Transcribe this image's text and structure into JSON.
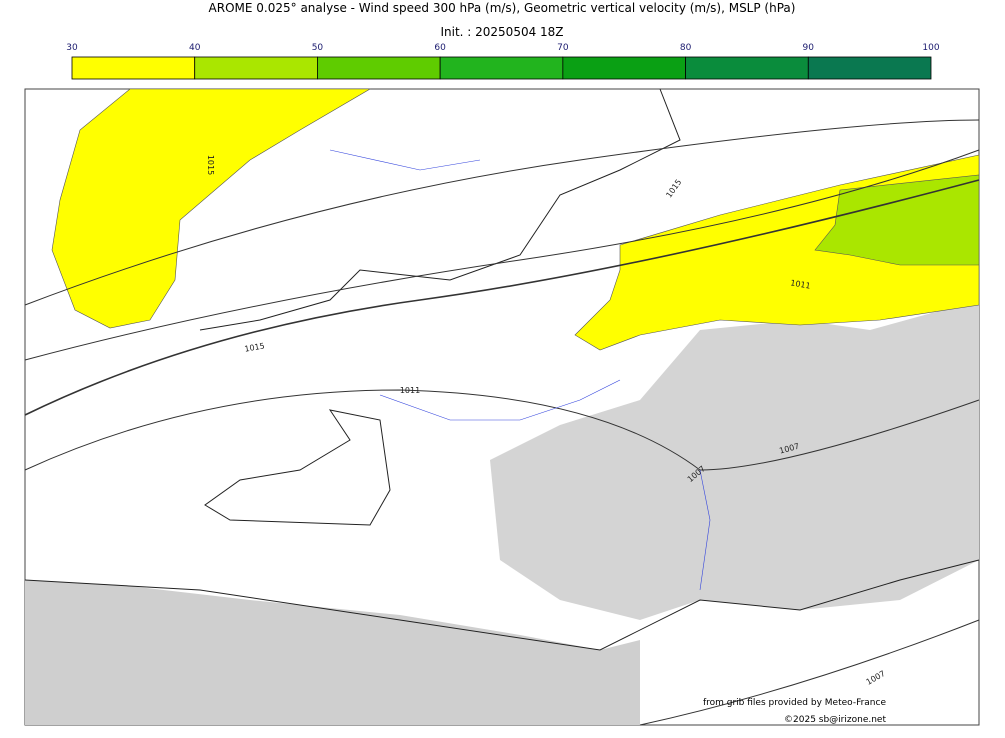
{
  "header": {
    "title": "AROME 0.025° analyse - Wind speed 300 hPa (m/s), Geometric vertical velocity (m/s), MSLP (hPa)",
    "init": "Init. : 20250504 18Z"
  },
  "colorbar": {
    "ticks": [
      30,
      40,
      50,
      60,
      70,
      80,
      90,
      100
    ],
    "colors": [
      "#ffff00",
      "#aae600",
      "#5fcc00",
      "#22b41e",
      "#0aa014",
      "#0a8c3c",
      "#0a7850"
    ]
  },
  "contour_labels": [
    "1015",
    "1015",
    "1011",
    "1015",
    "1011",
    "1007",
    "1007",
    "1007"
  ],
  "credits": [
    "from grib files provided by Meteo-France",
    "©2025 sb@irizone.net"
  ]
}
